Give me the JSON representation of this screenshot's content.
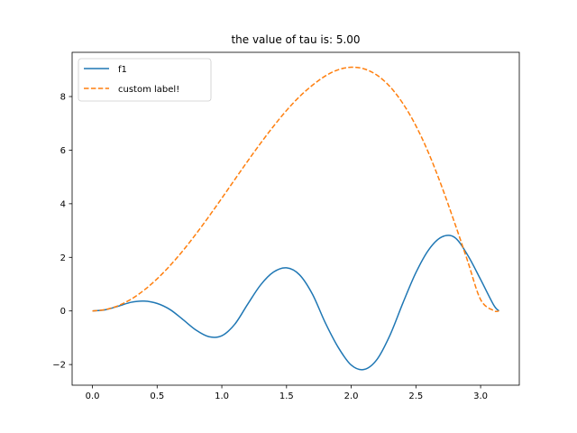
{
  "chart_data": {
    "type": "line",
    "title": "the value of tau is: 5.00",
    "xlabel": "",
    "ylabel": "",
    "xlim": [
      -0.157,
      3.299
    ],
    "ylim": [
      -2.77,
      9.65
    ],
    "xticks": [
      0.0,
      0.5,
      1.0,
      1.5,
      2.0,
      2.5,
      3.0
    ],
    "xtick_labels": [
      "0.0",
      "0.5",
      "1.0",
      "1.5",
      "2.0",
      "2.5",
      "3.0"
    ],
    "yticks": [
      -2,
      0,
      2,
      4,
      6,
      8
    ],
    "ytick_labels": [
      "−2",
      "0",
      "2",
      "4",
      "6",
      "8"
    ],
    "grid": false,
    "legend_position": "top-left",
    "series": [
      {
        "name": "f1",
        "color": "#1f77b4",
        "style": "solid",
        "x": [
          0.0,
          0.1,
          0.2,
          0.3,
          0.4,
          0.5,
          0.6,
          0.7,
          0.8,
          0.9,
          1.0,
          1.1,
          1.2,
          1.3,
          1.4,
          1.5,
          1.6,
          1.7,
          1.8,
          1.9,
          2.0,
          2.1,
          2.2,
          2.3,
          2.4,
          2.5,
          2.6,
          2.7,
          2.8,
          2.9,
          3.0,
          3.1,
          3.1416
        ],
        "y": [
          0.0,
          0.045,
          0.178,
          0.325,
          0.368,
          0.28,
          0.051,
          -0.323,
          -0.712,
          -0.96,
          -0.925,
          -0.496,
          0.254,
          0.973,
          1.452,
          1.608,
          1.351,
          0.629,
          -0.446,
          -1.362,
          -2.019,
          -2.182,
          -1.803,
          -0.898,
          0.304,
          1.431,
          2.291,
          2.76,
          2.742,
          2.082,
          1.174,
          0.231,
          0.0
        ]
      },
      {
        "name": "custom label!",
        "color": "#ff7f0e",
        "style": "dashed",
        "x": [
          0.0,
          0.1,
          0.2,
          0.3,
          0.4,
          0.5,
          0.6,
          0.7,
          0.8,
          0.9,
          1.0,
          1.1,
          1.2,
          1.3,
          1.4,
          1.5,
          1.6,
          1.7,
          1.8,
          1.9,
          2.0,
          2.1,
          2.2,
          2.3,
          2.4,
          2.5,
          2.6,
          2.7,
          2.8,
          2.9,
          3.0,
          3.1,
          3.1416
        ],
        "y": [
          0.0,
          0.05,
          0.199,
          0.443,
          0.779,
          1.199,
          1.694,
          2.254,
          2.869,
          3.525,
          4.207,
          4.902,
          5.592,
          6.261,
          6.895,
          7.481,
          7.995,
          8.421,
          8.769,
          9.001,
          9.093,
          9.032,
          8.794,
          8.367,
          7.737,
          6.908,
          5.87,
          4.639,
          3.276,
          1.857,
          0.423,
          0.014,
          0.0
        ]
      }
    ]
  }
}
